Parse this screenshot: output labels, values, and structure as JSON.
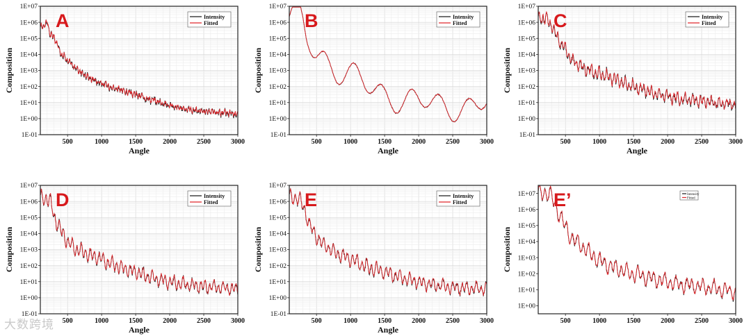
{
  "colors": {
    "intensity": "#1a1a1a",
    "fitted": "#e0262b",
    "letter": "#d7191c",
    "grid": "#d8d8d8"
  },
  "watermark": "大数跨境",
  "chart_data": [
    {
      "id": "A",
      "type": "line",
      "panel_label": "A",
      "xlabel": "Angle",
      "ylabel": "Composition",
      "xlim": [
        100,
        3000
      ],
      "ylim_exp": [
        -1,
        7
      ],
      "xticks": [
        "500",
        "1000",
        "1500",
        "2000",
        "2500",
        "3000"
      ],
      "yticks": [
        "1E-01",
        "1E+00",
        "1E+01",
        "1E+02",
        "1E+03",
        "1E+04",
        "1E+05",
        "1E+06",
        "1E+07"
      ],
      "legend": [
        "Intensity",
        "Fitted"
      ],
      "legend_placement": "top-right",
      "grid": true,
      "profile": {
        "x": [
          100,
          200,
          250,
          300,
          400,
          600,
          800,
          1000,
          1200,
          1500,
          1800,
          2100,
          2500,
          3000
        ],
        "y_log10": [
          5.7,
          6.0,
          5.2,
          5.1,
          4.1,
          3.2,
          2.6,
          2.2,
          1.9,
          1.5,
          1.1,
          0.7,
          0.45,
          0.3
        ]
      },
      "oscillation": {
        "period": 38,
        "amplitude": 0.12,
        "noise": 0.22
      }
    },
    {
      "id": "B",
      "type": "line",
      "panel_label": "B",
      "xlabel": "Angle",
      "ylabel": "Composition",
      "xlim": [
        100,
        3000
      ],
      "ylim_exp": [
        -1,
        7
      ],
      "xticks": [
        "500",
        "1000",
        "1500",
        "2000",
        "2500",
        "3000"
      ],
      "yticks": [
        "1E-01",
        "1E+00",
        "1E+01",
        "1E+02",
        "1E+03",
        "1E+04",
        "1E+05",
        "1E+06",
        "1E+07"
      ],
      "legend": [
        "Intensity",
        "Fitted"
      ],
      "legend_placement": "top-right",
      "grid": true,
      "profile": {
        "x": [
          100,
          250,
          300,
          350,
          500,
          600,
          700,
          800,
          1000,
          1200,
          1500,
          1800,
          2100,
          2500,
          3000
        ],
        "y_log10": [
          6.0,
          6.4,
          6.0,
          5.3,
          4.3,
          3.9,
          3.4,
          3.0,
          2.5,
          2.2,
          1.6,
          1.1,
          0.95,
          0.75,
          0.9
        ]
      },
      "oscillation": {
        "period": 420,
        "amplitude": 0.75,
        "noise": 0.05
      }
    },
    {
      "id": "C",
      "type": "line",
      "panel_label": "C",
      "xlabel": "Angle",
      "ylabel": "Composition",
      "xlim": [
        100,
        3000
      ],
      "ylim_exp": [
        -1,
        7
      ],
      "xticks": [
        "500",
        "1000",
        "1500",
        "2000",
        "2500",
        "3000"
      ],
      "yticks": [
        "1E-01",
        "1E+00",
        "1E+01",
        "1E+02",
        "1E+03",
        "1E+04",
        "1E+05",
        "1E+06",
        "1E+07"
      ],
      "legend": [
        "Intensity",
        "Fitted"
      ],
      "legend_placement": "top-right",
      "grid": true,
      "profile": {
        "x": [
          100,
          200,
          300,
          400,
          500,
          600,
          800,
          1000,
          1200,
          1500,
          1800,
          2100,
          2500,
          3000
        ],
        "y_log10": [
          6.2,
          6.3,
          5.8,
          4.9,
          4.3,
          3.6,
          3.1,
          2.8,
          2.5,
          2.0,
          1.6,
          1.3,
          1.1,
          0.85
        ]
      },
      "oscillation": {
        "period": 55,
        "amplitude": 0.3,
        "noise": 0.25
      }
    },
    {
      "id": "D",
      "type": "line",
      "panel_label": "D",
      "xlabel": "Angle",
      "ylabel": "Composition",
      "xlim": [
        100,
        3000
      ],
      "ylim_exp": [
        -1,
        7
      ],
      "xticks": [
        "500",
        "1000",
        "1500",
        "2000",
        "2500",
        "3000"
      ],
      "yticks": [
        "1E-01",
        "1E+00",
        "1E+01",
        "1E+02",
        "1E+03",
        "1E+04",
        "1E+05",
        "1E+06",
        "1E+07"
      ],
      "legend": [
        "Intensity",
        "Fitted"
      ],
      "legend_placement": "top-right",
      "grid": true,
      "profile": {
        "x": [
          100,
          200,
          250,
          300,
          400,
          500,
          600,
          800,
          1000,
          1200,
          1500,
          1800,
          2100,
          2500,
          3000
        ],
        "y_log10": [
          6.2,
          6.2,
          6.0,
          5.1,
          4.2,
          3.5,
          3.1,
          2.7,
          2.4,
          2.0,
          1.6,
          1.2,
          0.9,
          0.7,
          0.55
        ]
      },
      "oscillation": {
        "period": 65,
        "amplitude": 0.35,
        "noise": 0.18
      }
    },
    {
      "id": "E",
      "type": "line",
      "panel_label": "E",
      "xlabel": "Angle",
      "ylabel": "Composition",
      "xlim": [
        100,
        3000
      ],
      "ylim_exp": [
        -1,
        7
      ],
      "xticks": [
        "500",
        "1000",
        "1500",
        "2000",
        "2500",
        "3000"
      ],
      "yticks": [
        "1E-01",
        "1E+00",
        "1E+01",
        "1E+02",
        "1E+03",
        "1E+04",
        "1E+05",
        "1E+06",
        "1E+07"
      ],
      "legend": [
        "Intensity",
        "Fitted"
      ],
      "legend_placement": "top-right",
      "grid": true,
      "profile": {
        "x": [
          100,
          200,
          300,
          400,
          500,
          600,
          800,
          1000,
          1200,
          1500,
          1800,
          2100,
          2500,
          3000
        ],
        "y_log10": [
          6.2,
          6.3,
          5.8,
          4.5,
          3.8,
          3.3,
          2.8,
          2.4,
          2.0,
          1.6,
          1.2,
          0.9,
          0.65,
          0.55
        ]
      },
      "oscillation": {
        "period": 70,
        "amplitude": 0.35,
        "noise": 0.18
      }
    },
    {
      "id": "E2",
      "type": "line",
      "panel_label": "E’",
      "xlabel": "",
      "ylabel": "Composition",
      "xlim": [
        100,
        3000
      ],
      "ylim_exp": [
        -0.5,
        7.5
      ],
      "xticks": [
        "500",
        "1000",
        "1500",
        "2000",
        "2500",
        "3000"
      ],
      "yticks": [
        "1E+00",
        "1E+01",
        "1E+02",
        "1E+03",
        "1E+04",
        "1E+05",
        "1E+06",
        "1E+07"
      ],
      "legend": [
        "Intensity",
        "Fitted"
      ],
      "legend_placement": "top-right",
      "legend_small": true,
      "grid": false,
      "profile": {
        "x": [
          100,
          200,
          300,
          400,
          500,
          600,
          800,
          1000,
          1200,
          1500,
          1800,
          2100,
          2500,
          3000
        ],
        "y_log10": [
          7.0,
          7.1,
          6.8,
          5.8,
          4.9,
          4.2,
          3.5,
          2.8,
          2.4,
          2.0,
          1.7,
          1.4,
          1.2,
          0.9
        ]
      },
      "oscillation": {
        "period": 80,
        "amplitude": 0.4,
        "noise": 0.18
      }
    }
  ]
}
